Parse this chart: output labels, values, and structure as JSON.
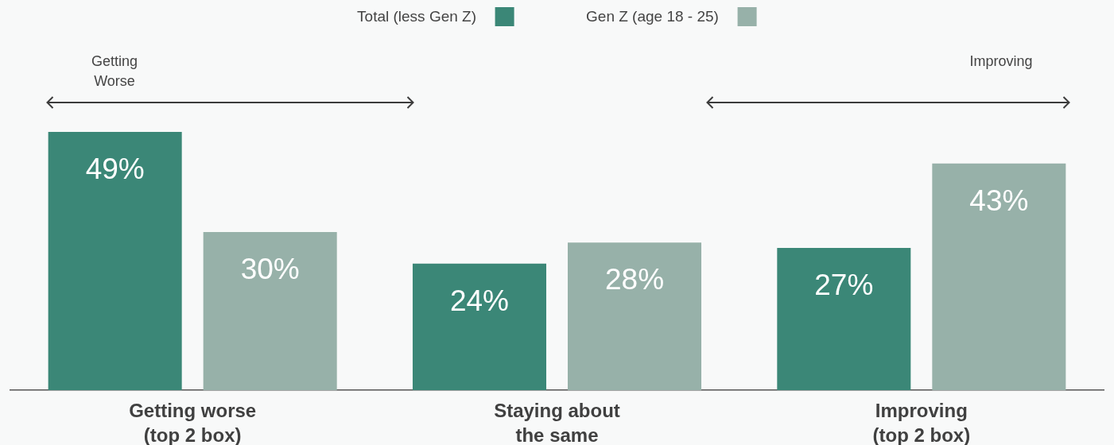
{
  "chart_data": {
    "type": "bar",
    "categories": [
      "Getting worse\n(top 2 box)",
      "Staying about\nthe same",
      "Improving\n(top 2 box)"
    ],
    "series": [
      {
        "name": "Total (less Gen Z)",
        "color": "#3b8777",
        "values": [
          49,
          24,
          27
        ],
        "value_labels": [
          "49%",
          "24%",
          "27%"
        ]
      },
      {
        "name": "Gen Z (age 18 - 25)",
        "color": "#97b1a9",
        "values": [
          30,
          28,
          43
        ],
        "value_labels": [
          "30%",
          "28%",
          "43%"
        ]
      }
    ],
    "legend": "top",
    "annotations": [
      "Getting\nWorse",
      "Improving"
    ]
  }
}
